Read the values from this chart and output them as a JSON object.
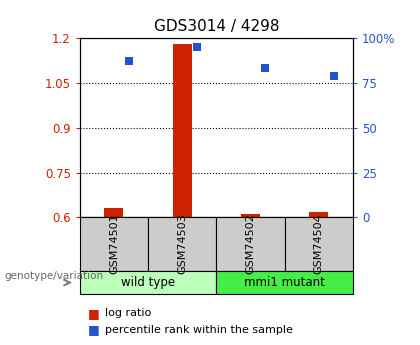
{
  "title": "GDS3014 / 4298",
  "samples": [
    "GSM74501",
    "GSM74503",
    "GSM74502",
    "GSM74504"
  ],
  "log_ratio": [
    0.632,
    1.18,
    0.61,
    0.618
  ],
  "percentile_rank": [
    87,
    95,
    83,
    79
  ],
  "ylim_left": [
    0.6,
    1.2
  ],
  "ylim_right": [
    0,
    100
  ],
  "left_ticks": [
    0.6,
    0.75,
    0.9,
    1.05,
    1.2
  ],
  "left_tick_labels": [
    "0.6",
    "0.75",
    "0.9",
    "1.05",
    "1.2"
  ],
  "right_ticks": [
    0,
    25,
    50,
    75,
    100
  ],
  "right_tick_labels": [
    "0",
    "25",
    "50",
    "75",
    "100%"
  ],
  "bar_color": "#cc2200",
  "square_color": "#2255cc",
  "group_colors": {
    "wild type": "#bbffbb",
    "mmi1 mutant": "#44ee44"
  },
  "sample_box_color": "#cccccc",
  "bg_color": "#ffffff",
  "legend_items": [
    "log ratio",
    "percentile rank within the sample"
  ],
  "genotype_label": "genotype/variation",
  "groups_info": [
    {
      "name": "wild type",
      "start": 0,
      "end": 1
    },
    {
      "name": "mmi1 mutant",
      "start": 2,
      "end": 3
    }
  ]
}
